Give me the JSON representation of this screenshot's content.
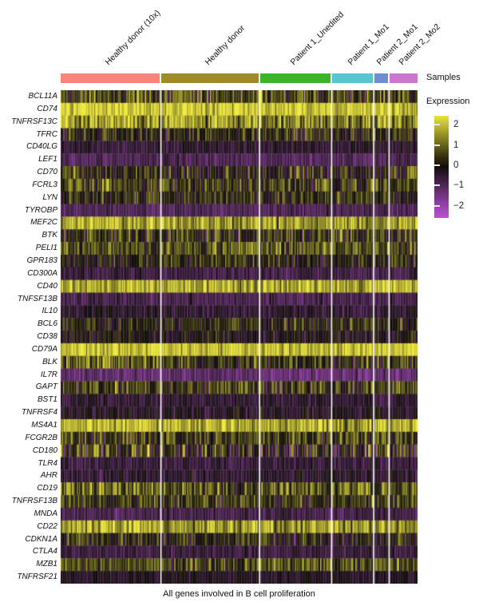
{
  "title": "All genes involved in B cell proliferation",
  "samples": {
    "axis_label": "Samples",
    "groups": [
      {
        "label": "Healthy donor (10x)",
        "color": "#f7837a",
        "n_cells": 86
      },
      {
        "label": "Healthy donor",
        "color": "#9e8a28",
        "n_cells": 84
      },
      {
        "label": "Patient 1_Unedited",
        "color": "#3cb32a",
        "n_cells": 61
      },
      {
        "label": "Patient 1_Mo1",
        "color": "#57c5cd",
        "n_cells": 35
      },
      {
        "label": "Patient 2_Mo1",
        "color": "#6e8ed4",
        "n_cells": 12
      },
      {
        "label": "Patient 2_Mo2",
        "color": "#cb77d0",
        "n_cells": 24
      }
    ]
  },
  "legend": {
    "title": "Expression",
    "ticks": [
      {
        "label": "2",
        "value": 2
      },
      {
        "label": "1",
        "value": 1
      },
      {
        "label": "0",
        "value": 0
      },
      {
        "label": "−1",
        "value": -1
      },
      {
        "label": "−2",
        "value": -2
      }
    ]
  },
  "chart_data": {
    "type": "heatmap",
    "title": "All genes involved in B cell proliferation",
    "legend_title": "Expression",
    "expression_scale": {
      "min": -2.5,
      "max": 2.5
    },
    "colormap": {
      "negative": "#bb50d6",
      "mid": "#0d0b07",
      "positive": "#f0ea3e"
    },
    "column_groups": [
      "Healthy donor (10x)",
      "Healthy donor",
      "Patient 1_Unedited",
      "Patient 1_Mo1",
      "Patient 2_Mo1",
      "Patient 2_Mo2"
    ],
    "genes": [
      {
        "name": "BCL11A",
        "group_means": [
          0.7,
          0.6,
          0.5,
          0.45,
          0.5,
          0.5
        ],
        "sd": 0.8
      },
      {
        "name": "CD74",
        "group_means": [
          2.2,
          2.2,
          2.1,
          2.0,
          2.1,
          2.1
        ],
        "sd": 0.5
      },
      {
        "name": "TNFRSF13C",
        "group_means": [
          1.7,
          1.6,
          1.3,
          1.2,
          1.4,
          1.2
        ],
        "sd": 0.8
      },
      {
        "name": "TFRC",
        "group_means": [
          0.1,
          0.25,
          0.3,
          0.1,
          0.15,
          0.1
        ],
        "sd": 0.65
      },
      {
        "name": "CD40LG",
        "group_means": [
          -0.5,
          -0.45,
          -0.45,
          -0.4,
          -0.45,
          -0.4
        ],
        "sd": 0.35
      },
      {
        "name": "LEF1",
        "group_means": [
          -0.9,
          -0.9,
          -1.0,
          -0.95,
          -0.9,
          -0.85
        ],
        "sd": 0.3
      },
      {
        "name": "CD70",
        "group_means": [
          0.35,
          0.15,
          0.1,
          0.15,
          0.2,
          0.25
        ],
        "sd": 0.75
      },
      {
        "name": "FCRL3",
        "group_means": [
          0.65,
          0.55,
          0.5,
          0.5,
          0.5,
          0.45
        ],
        "sd": 0.7
      },
      {
        "name": "LYN",
        "group_means": [
          0.25,
          0.3,
          0.3,
          0.2,
          0.2,
          0.35
        ],
        "sd": 0.6
      },
      {
        "name": "TYROBP",
        "group_means": [
          -0.9,
          -0.9,
          -0.9,
          -0.85,
          -0.9,
          -0.9
        ],
        "sd": 0.3
      },
      {
        "name": "MEF2C",
        "group_means": [
          1.7,
          1.6,
          1.6,
          1.5,
          1.6,
          1.5
        ],
        "sd": 0.6
      },
      {
        "name": "BTK",
        "group_means": [
          0.3,
          0.3,
          0.25,
          0.3,
          0.3,
          0.3
        ],
        "sd": 0.75
      },
      {
        "name": "PELI1",
        "group_means": [
          0.6,
          0.8,
          0.7,
          0.65,
          0.7,
          0.8
        ],
        "sd": 0.6
      },
      {
        "name": "GPR183",
        "group_means": [
          0.15,
          0.3,
          0.2,
          0.15,
          0.2,
          0.2
        ],
        "sd": 0.6
      },
      {
        "name": "CD300A",
        "group_means": [
          -0.7,
          -0.7,
          -0.7,
          -0.7,
          -0.7,
          -0.7
        ],
        "sd": 0.3
      },
      {
        "name": "CD40",
        "group_means": [
          1.8,
          1.7,
          1.7,
          1.7,
          1.7,
          1.8
        ],
        "sd": 0.6
      },
      {
        "name": "TNFSF13B",
        "group_means": [
          -0.8,
          -0.8,
          -0.8,
          -0.75,
          -0.8,
          -0.8
        ],
        "sd": 0.3
      },
      {
        "name": "IL10",
        "group_means": [
          -0.4,
          -0.45,
          -0.45,
          -0.55,
          -0.45,
          -0.4
        ],
        "sd": 0.35
      },
      {
        "name": "BCL6",
        "group_means": [
          0.15,
          0.35,
          0.3,
          0.25,
          0.25,
          0.25
        ],
        "sd": 0.6
      },
      {
        "name": "CD38",
        "group_means": [
          -0.1,
          -0.2,
          -0.2,
          -0.2,
          -0.2,
          -0.15
        ],
        "sd": 0.45
      },
      {
        "name": "CD79A",
        "group_means": [
          2.1,
          2.0,
          2.0,
          1.9,
          2.0,
          2.0
        ],
        "sd": 0.5
      },
      {
        "name": "BLK",
        "group_means": [
          0.9,
          0.45,
          0.3,
          0.25,
          0.3,
          0.35
        ],
        "sd": 0.75
      },
      {
        "name": "IL7R",
        "group_means": [
          -1.2,
          -1.2,
          -1.3,
          -1.25,
          -1.2,
          -1.2
        ],
        "sd": 0.35
      },
      {
        "name": "GAPT",
        "group_means": [
          0.45,
          0.4,
          0.4,
          0.5,
          0.4,
          0.45
        ],
        "sd": 0.7
      },
      {
        "name": "BST1",
        "group_means": [
          -0.5,
          -0.5,
          -0.55,
          -0.5,
          -0.5,
          -0.5
        ],
        "sd": 0.3
      },
      {
        "name": "TNFRSF4",
        "group_means": [
          -0.3,
          -0.3,
          -0.35,
          -0.25,
          -0.25,
          -0.3
        ],
        "sd": 0.4
      },
      {
        "name": "MS4A1",
        "group_means": [
          1.9,
          1.85,
          1.8,
          1.6,
          1.8,
          1.8
        ],
        "sd": 0.6
      },
      {
        "name": "FCGR2B",
        "group_means": [
          0.5,
          0.5,
          0.55,
          0.6,
          0.5,
          0.5
        ],
        "sd": 0.65
      },
      {
        "name": "CD180",
        "group_means": [
          0.5,
          0.1,
          0.05,
          0.1,
          0.1,
          0.15
        ],
        "sd": 1.0
      },
      {
        "name": "TLR4",
        "group_means": [
          -0.6,
          -0.6,
          -0.6,
          -0.6,
          -0.6,
          -0.6
        ],
        "sd": 0.3
      },
      {
        "name": "AHR",
        "group_means": [
          -0.5,
          -0.5,
          -0.45,
          -0.4,
          -0.45,
          -0.5
        ],
        "sd": 0.4
      },
      {
        "name": "CD19",
        "group_means": [
          1.1,
          0.65,
          0.95,
          1.05,
          0.95,
          0.95
        ],
        "sd": 0.75
      },
      {
        "name": "TNFRSF13B",
        "group_means": [
          0.45,
          0.4,
          0.2,
          0.45,
          0.4,
          0.4
        ],
        "sd": 0.65
      },
      {
        "name": "MNDA",
        "group_means": [
          -0.8,
          -0.75,
          -0.7,
          -0.75,
          -0.75,
          -0.75
        ],
        "sd": 0.3
      },
      {
        "name": "CD22",
        "group_means": [
          1.7,
          1.6,
          1.6,
          1.6,
          1.6,
          1.6
        ],
        "sd": 0.6
      },
      {
        "name": "CDKN1A",
        "group_means": [
          0.25,
          0.2,
          0.05,
          0.2,
          0.15,
          0.2
        ],
        "sd": 0.65
      },
      {
        "name": "CTLA4",
        "group_means": [
          -0.6,
          -0.6,
          -0.6,
          -0.55,
          -0.6,
          -0.6
        ],
        "sd": 0.28
      },
      {
        "name": "MZB1",
        "group_means": [
          0.6,
          0.6,
          0.8,
          0.7,
          0.6,
          0.6
        ],
        "sd": 0.6
      },
      {
        "name": "TNFRSF21",
        "group_means": [
          -0.3,
          -0.3,
          -0.3,
          -0.3,
          -0.3,
          -0.3
        ],
        "sd": 0.28
      }
    ]
  }
}
